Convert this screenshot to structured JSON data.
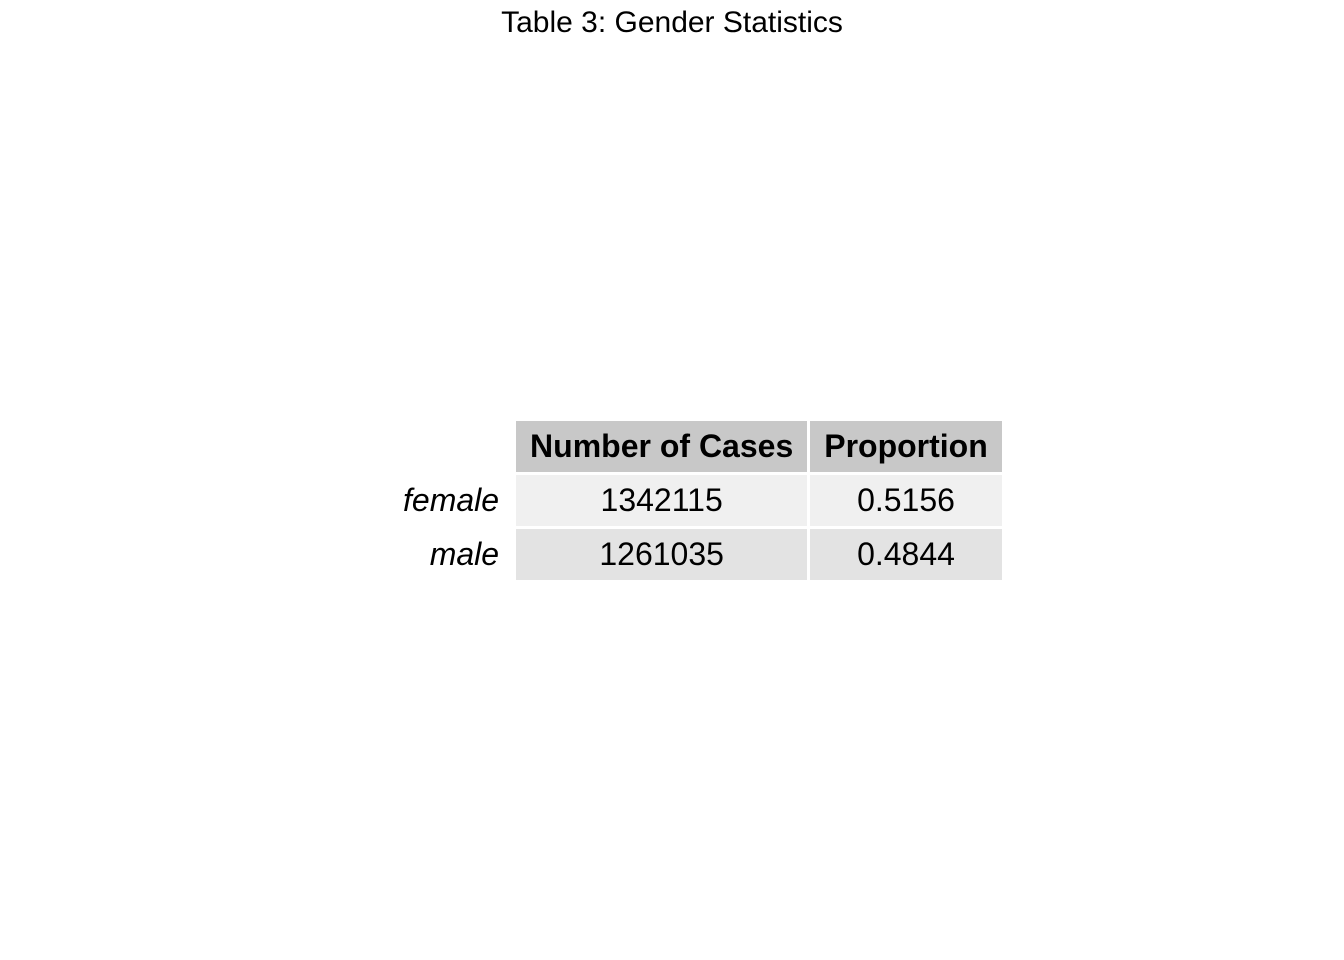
{
  "chart_data": {
    "type": "table",
    "title": "Table 3: Gender Statistics",
    "columns": [
      "Number of Cases",
      "Proportion"
    ],
    "rows": [
      {
        "label": "female",
        "values": [
          "1342115",
          "0.5156"
        ]
      },
      {
        "label": "male",
        "values": [
          "1261035",
          "0.4844"
        ]
      }
    ]
  },
  "colors": {
    "header_bg": "#c8c8c8",
    "row_odd_bg": "#f0f0f0",
    "row_even_bg": "#e3e3e3"
  }
}
